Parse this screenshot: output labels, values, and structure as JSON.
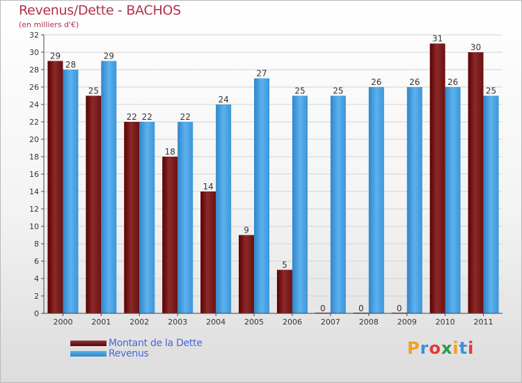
{
  "title": "Revenus/Dette - BACHOS",
  "subtitle": "(en milliers d'€)",
  "chart_data": {
    "type": "bar",
    "title": "Revenus/Dette - BACHOS",
    "ylabel": "(en milliers d'€)",
    "xlabel": "",
    "ylim": [
      0,
      32
    ],
    "ytick_step": 2,
    "yticks": [
      "0",
      "2",
      "4",
      "6",
      "8",
      "10",
      "12",
      "14",
      "16",
      "18",
      "20",
      "22",
      "24",
      "26",
      "28",
      "30",
      "32"
    ],
    "categories": [
      "2000",
      "2001",
      "2002",
      "2003",
      "2004",
      "2005",
      "2006",
      "2007",
      "2008",
      "2009",
      "2010",
      "2011"
    ],
    "series": [
      {
        "name": "Montant de la Dette",
        "color": "#7a1e1e",
        "values": [
          29,
          25,
          22,
          18,
          14,
          9,
          5,
          0,
          0,
          0,
          31,
          30
        ]
      },
      {
        "name": "Revenus",
        "color": "#4aa3e6",
        "values": [
          28,
          29,
          22,
          22,
          24,
          27,
          25,
          25,
          26,
          26,
          26,
          25
        ]
      }
    ],
    "grid": true,
    "legend": "bottom-left"
  },
  "legend": {
    "dette_label": "Montant de la Dette",
    "revenus_label": "Revenus"
  },
  "brand": {
    "letters": [
      "P",
      "r",
      "o",
      "x",
      "i",
      "t",
      "i"
    ],
    "colors": [
      "#f0a020",
      "#3a8fd8",
      "#e03a3a",
      "#2a9a4a",
      "#f0a020",
      "#3a8fd8",
      "#e03a3a"
    ]
  },
  "colors": {
    "title": "#b0324a",
    "dette": "#7a1e1e",
    "revenus": "#4aa3e6",
    "legend_text": "#4466dd"
  }
}
